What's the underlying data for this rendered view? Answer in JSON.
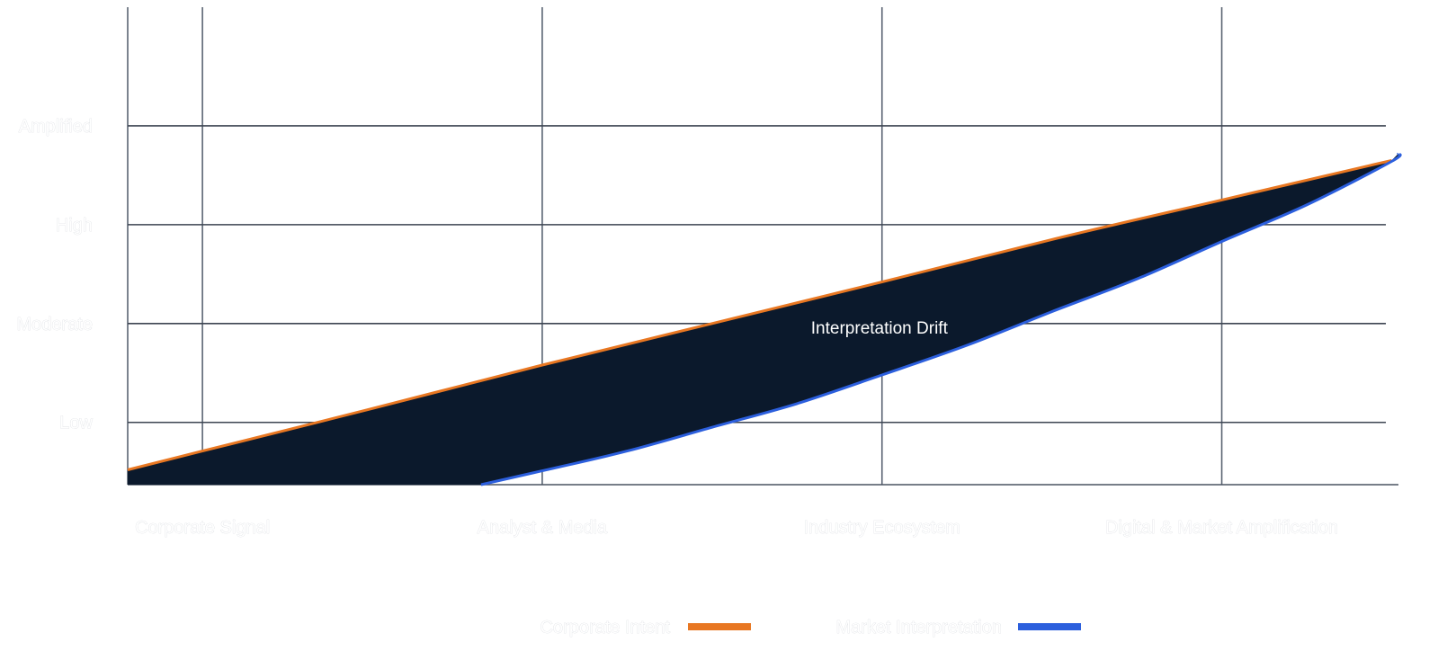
{
  "chart_data": {
    "type": "area",
    "title": "",
    "xlabel": "",
    "ylabel": "",
    "categories": [
      "Corporate Signal",
      "Analyst & Media",
      "Industry Ecosystem",
      "Digital & Market Amplification"
    ],
    "y_levels": [
      "Low",
      "Moderate",
      "High",
      "Amplified"
    ],
    "xlim": [
      -0.22,
      3.52
    ],
    "ylim": [
      -0.63,
      4.2
    ],
    "grid": true,
    "series": [
      {
        "name": "Corporate Intent",
        "color": "#e87722",
        "x": [
          -0.22,
          0,
          0.5,
          1,
          1.5,
          2,
          2.5,
          3,
          3.5
        ],
        "values": [
          -0.48,
          -0.29,
          0.14,
          0.58,
          1.0,
          1.42,
          1.85,
          2.25,
          2.65
        ]
      },
      {
        "name": "Market Interpretation",
        "color": "#2c5fdd",
        "x": [
          0.82,
          1,
          1.25,
          1.5,
          1.75,
          2,
          2.25,
          2.5,
          2.75,
          3,
          3.25,
          3.5,
          3.52
        ],
        "values": [
          -0.63,
          -0.49,
          -0.29,
          -0.05,
          0.19,
          0.48,
          0.78,
          1.12,
          1.45,
          1.83,
          2.2,
          2.64,
          2.72
        ]
      }
    ],
    "annotations": [
      {
        "text": "Interpretation Drift",
        "x": 1.5,
        "y": 0.9
      }
    ],
    "fill_between": {
      "color": "#0b192c",
      "label": "Interpretation Drift"
    },
    "legend": {
      "position": "bottom-center"
    }
  }
}
